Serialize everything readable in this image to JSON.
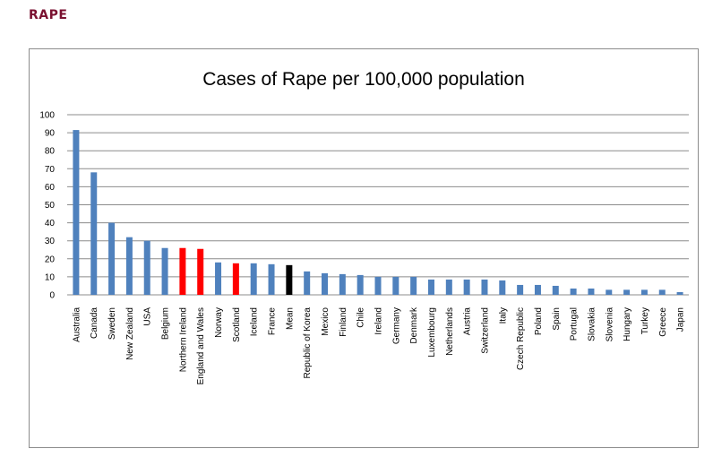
{
  "page": {
    "heading": "RAPE"
  },
  "colors": {
    "heading": "#7a1030",
    "bar_default": "#4f81bd",
    "bar_highlight_red": "#ff0000",
    "bar_highlight_black": "#000000",
    "gridline": "#8c8c8c"
  },
  "chart_data": {
    "type": "bar",
    "title": "Cases of Rape per 100,000 population",
    "xlabel": "",
    "ylabel": "",
    "ylim": [
      0,
      100
    ],
    "yticks": [
      0,
      10,
      20,
      30,
      40,
      50,
      60,
      70,
      80,
      90,
      100
    ],
    "grid": true,
    "legend": "none",
    "categories": [
      "Australia",
      "Canada",
      "Sweden",
      "New Zealand",
      "USA",
      "Belgium",
      "Northern Ireland",
      "England and Wales",
      "Norway",
      "Scotland",
      "Iceland",
      "France",
      "Mean",
      "Republic of Korea",
      "Mexico",
      "Finland",
      "Chile",
      "Ireland",
      "Germany",
      "Denmark",
      "Luxembourg",
      "Netherlands",
      "Austria",
      "Switzerland",
      "Italy",
      "Czech Republic",
      "Poland",
      "Spain",
      "Portugal",
      "Slovakia",
      "Slovenia",
      "Hungary",
      "Turkey",
      "Greece",
      "Japan"
    ],
    "values": [
      91.5,
      68,
      40,
      32,
      30,
      26,
      26,
      25.5,
      18,
      17.5,
      17.5,
      17,
      16.5,
      13,
      12,
      11.5,
      11,
      10,
      10,
      10,
      8.5,
      8.5,
      8.5,
      8.5,
      8,
      5.5,
      5.5,
      5,
      3.5,
      3.5,
      2.8,
      2.8,
      2.8,
      2.8,
      1.5
    ],
    "bar_colors": [
      "#4f81bd",
      "#4f81bd",
      "#4f81bd",
      "#4f81bd",
      "#4f81bd",
      "#4f81bd",
      "#ff0000",
      "#ff0000",
      "#4f81bd",
      "#ff0000",
      "#4f81bd",
      "#4f81bd",
      "#000000",
      "#4f81bd",
      "#4f81bd",
      "#4f81bd",
      "#4f81bd",
      "#4f81bd",
      "#4f81bd",
      "#4f81bd",
      "#4f81bd",
      "#4f81bd",
      "#4f81bd",
      "#4f81bd",
      "#4f81bd",
      "#4f81bd",
      "#4f81bd",
      "#4f81bd",
      "#4f81bd",
      "#4f81bd",
      "#4f81bd",
      "#4f81bd",
      "#4f81bd",
      "#4f81bd",
      "#4f81bd"
    ]
  }
}
